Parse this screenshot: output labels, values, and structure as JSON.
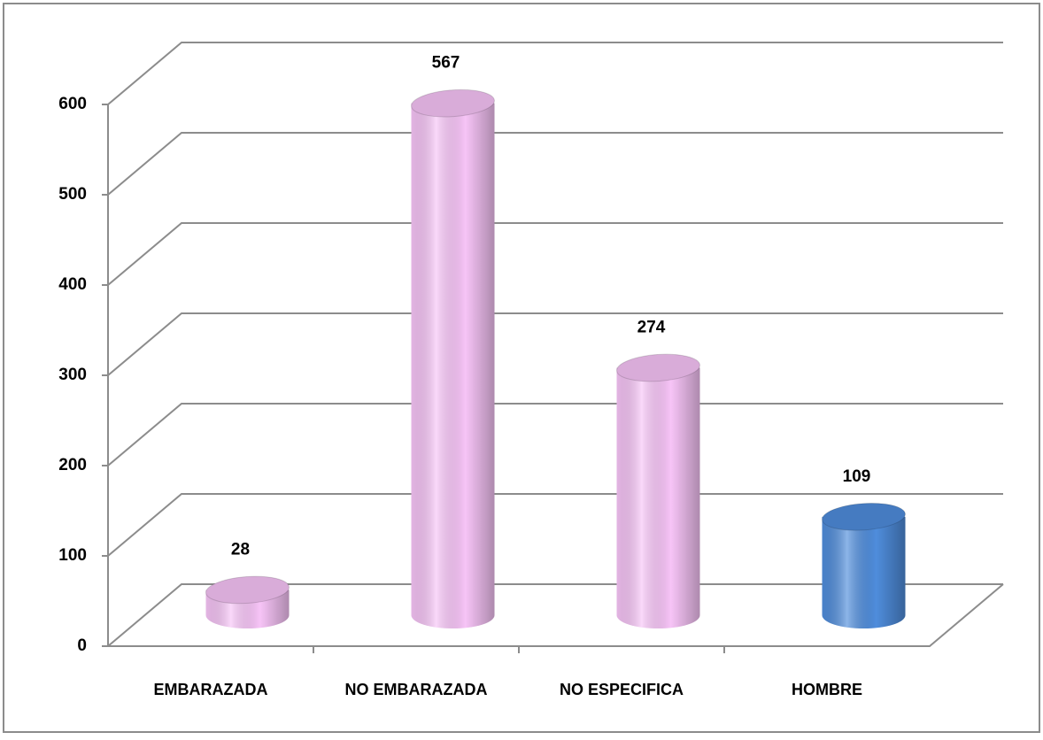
{
  "chart_data": {
    "type": "bar3d",
    "categories": [
      "EMBARAZADA",
      "NO EMBARAZADA",
      "NO ESPECIFICA",
      "HOMBRE"
    ],
    "values": [
      28,
      567,
      274,
      109
    ],
    "colors": [
      "#f7c4f7",
      "#f7c4f7",
      "#f7c4f7",
      "#4f8ddc"
    ],
    "ylim": [
      0,
      600
    ],
    "yticks": [
      0,
      100,
      200,
      300,
      400,
      500,
      600
    ],
    "grid": true
  }
}
